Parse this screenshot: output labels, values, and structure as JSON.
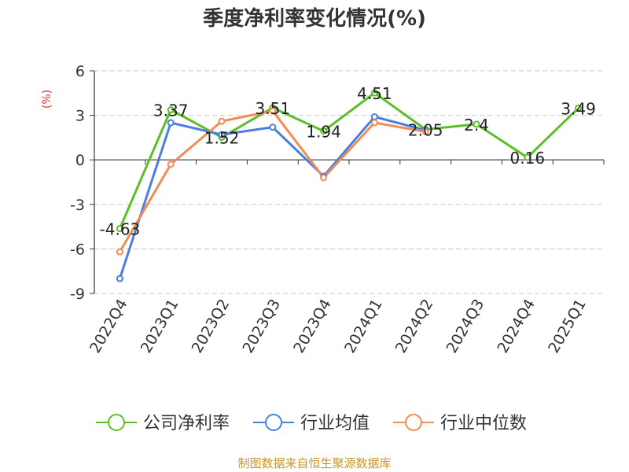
{
  "chart_data": {
    "type": "line",
    "title": "季度净利率变化情况(%)",
    "ylabel": "(%)",
    "xlabel": "",
    "categories": [
      "2022Q4",
      "2023Q1",
      "2023Q2",
      "2023Q3",
      "2023Q4",
      "2024Q1",
      "2024Q2",
      "2024Q3",
      "2024Q4",
      "2025Q1"
    ],
    "ylim": [
      -9,
      6
    ],
    "yticks": [
      6,
      3,
      0,
      -3,
      -6,
      -9
    ],
    "grid": true,
    "legend_position": "bottom",
    "series": [
      {
        "name": "公司净利率",
        "color": "#5cbf2a",
        "values": [
          -4.63,
          3.37,
          1.52,
          3.51,
          1.94,
          4.51,
          2.05,
          2.4,
          0.16,
          3.49
        ],
        "labels": [
          "-4.63",
          "3.37",
          "1.52",
          "3.51",
          "1.94",
          "4.51",
          "2.05",
          "2.4",
          "0.16",
          "3.49"
        ]
      },
      {
        "name": "行业均值",
        "color": "#4a7fe0",
        "values": [
          -8.0,
          2.5,
          1.7,
          2.2,
          -1.1,
          2.9,
          2.0,
          null,
          null,
          null
        ]
      },
      {
        "name": "行业中位数",
        "color": "#f28b55",
        "values": [
          -6.2,
          -0.3,
          2.6,
          3.3,
          -1.2,
          2.5,
          1.9,
          null,
          null,
          null
        ]
      }
    ],
    "source": "制图数据来自恒生聚源数据库"
  }
}
